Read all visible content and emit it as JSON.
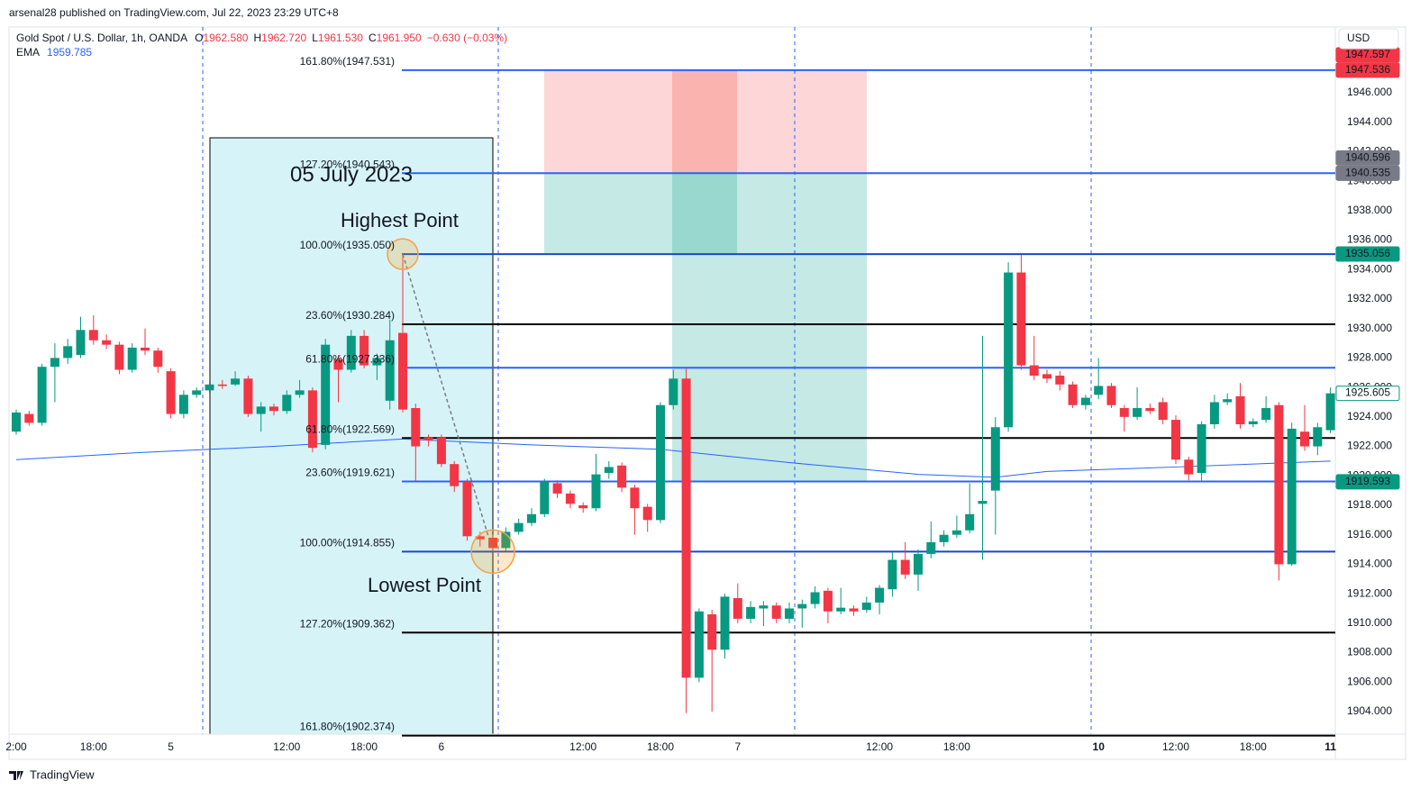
{
  "header": {
    "author_line": "arsenal28 published on TradingView.com, Jul 22, 2023 23:29 UTC+8",
    "symbol": "Gold Spot / U.S. Dollar, 1h, OANDA",
    "ohlc": [
      {
        "label": "O",
        "value": "1962.580"
      },
      {
        "label": "H",
        "value": "1962.720"
      },
      {
        "label": "L",
        "value": "1961.530"
      },
      {
        "label": "C",
        "value": "1961.950"
      }
    ],
    "change": "−0.630 (−0.03%)",
    "ema_label": "EMA",
    "ema_value": "1959.785",
    "currency": "USD"
  },
  "footer": {
    "brand": "TradingView"
  },
  "chart_data": {
    "type": "candlestick",
    "ylim": [
      1902.47,
      1950.46
    ],
    "yticks": [
      {
        "value": 1904,
        "label": "1904.000"
      },
      {
        "value": 1906,
        "label": "1906.000"
      },
      {
        "value": 1908,
        "label": "1908.000"
      },
      {
        "value": 1910,
        "label": "1910.000"
      },
      {
        "value": 1912,
        "label": "1912.000"
      },
      {
        "value": 1914,
        "label": "1914.000"
      },
      {
        "value": 1916,
        "label": "1916.000"
      },
      {
        "value": 1918,
        "label": "1918.000"
      },
      {
        "value": 1920,
        "label": "1920.000"
      },
      {
        "value": 1922,
        "label": "1922.000"
      },
      {
        "value": 1924,
        "label": "1924.000"
      },
      {
        "value": 1926,
        "label": "1926.000"
      },
      {
        "value": 1928,
        "label": "1928.000"
      },
      {
        "value": 1930,
        "label": "1930.000"
      },
      {
        "value": 1932,
        "label": "1932.000"
      },
      {
        "value": 1934,
        "label": "1934.000"
      },
      {
        "value": 1936,
        "label": "1936.000"
      },
      {
        "value": 1938,
        "label": "1938.000"
      },
      {
        "value": 1940,
        "label": "1940.000"
      },
      {
        "value": 1942,
        "label": "1942.000"
      },
      {
        "value": 1944,
        "label": "1944.000"
      },
      {
        "value": 1946,
        "label": "1946.000"
      }
    ],
    "xticks": [
      {
        "value": 0,
        "label": "2:00"
      },
      {
        "value": 6,
        "label": "18:00"
      },
      {
        "value": 12,
        "label": "5"
      },
      {
        "value": 21,
        "label": "12:00"
      },
      {
        "value": 27,
        "label": "18:00"
      },
      {
        "value": 33,
        "label": "6"
      },
      {
        "value": 44,
        "label": "12:00"
      },
      {
        "value": 50,
        "label": "18:00"
      },
      {
        "value": 56,
        "label": "7"
      },
      {
        "value": 67,
        "label": "12:00"
      },
      {
        "value": 73,
        "label": "18:00"
      },
      {
        "value": 84,
        "label": "10"
      },
      {
        "value": 90,
        "label": "12:00"
      },
      {
        "value": 96,
        "label": "18:00"
      },
      {
        "value": 102,
        "label": "11"
      }
    ],
    "up_color": "#089981",
    "down_color": "#f23645",
    "ohlc": {
      "open": [
        1923.0,
        1924.2,
        1923.6,
        1927.4,
        1928.0,
        1928.2,
        1929.9,
        1929.2,
        1928.9,
        1927.2,
        1928.7,
        1928.5,
        1927.1,
        1924.2,
        1925.5,
        1925.8,
        1926.2,
        1926.2,
        1926.6,
        1924.2,
        1924.7,
        1924.4,
        1925.5,
        1925.8,
        1922.1,
        1927.9,
        1927.2,
        1929.5,
        1927.5,
        1925.1,
        1929.7,
        1924.6,
        1922.6,
        1922.6,
        1920.8,
        1919.6,
        1915.9,
        1915.8,
        1915.1,
        1916.2,
        1916.8,
        1917.4,
        1919.5,
        1918.8,
        1918.0,
        1917.8,
        1920.2,
        1920.7,
        1919.2,
        1917.9,
        1917.0,
        1924.8,
        1926.6,
        1906.3,
        1910.6,
        1908.2,
        1911.7,
        1910.3,
        1911.0,
        1911.2,
        1910.3,
        1911.0,
        1911.3,
        1912.2,
        1910.8,
        1911.0,
        1910.9,
        1911.4,
        1912.3,
        1914.3,
        1913.3,
        1914.7,
        1915.5,
        1916.0,
        1916.3,
        1918.1,
        1919.0,
        1923.3,
        1933.8,
        1927.5,
        1926.9,
        1926.8,
        1926.2,
        1924.8,
        1925.5,
        1926.1,
        1924.6,
        1924.0,
        1924.6,
        1925.0,
        1923.8,
        1921.1,
        1920.2,
        1923.5,
        1925.0,
        1925.4,
        1923.5,
        1923.8,
        1924.8,
        1914.0,
        1923.0,
        1922.0,
        1923.1
      ],
      "high": [
        1924.5,
        1924.4,
        1927.6,
        1929.0,
        1929.3,
        1930.8,
        1930.9,
        1929.6,
        1929.1,
        1929.0,
        1930.0,
        1928.7,
        1927.3,
        1925.8,
        1926.0,
        1926.4,
        1926.5,
        1927.1,
        1926.8,
        1925.0,
        1924.9,
        1925.8,
        1926.5,
        1926.0,
        1929.3,
        1928.2,
        1929.9,
        1929.9,
        1928.3,
        1930.6,
        1935.05,
        1924.9,
        1922.8,
        1922.8,
        1921.0,
        1919.8,
        1916.2,
        1916.0,
        1916.5,
        1917.1,
        1917.8,
        1919.8,
        1919.7,
        1919.0,
        1918.2,
        1921.5,
        1921.0,
        1920.9,
        1919.4,
        1918.1,
        1925.0,
        1927.2,
        1927.3,
        1911.0,
        1910.9,
        1912.0,
        1912.7,
        1911.5,
        1911.5,
        1911.4,
        1911.4,
        1911.6,
        1912.5,
        1912.4,
        1912.4,
        1911.2,
        1911.8,
        1912.6,
        1914.8,
        1915.5,
        1915.0,
        1916.9,
        1916.3,
        1917.3,
        1919.5,
        1929.5,
        1924.0,
        1934.5,
        1935.0,
        1929.5,
        1927.2,
        1927.1,
        1926.4,
        1925.5,
        1928.0,
        1926.3,
        1924.8,
        1926.0,
        1924.9,
        1925.3,
        1924.1,
        1921.3,
        1923.7,
        1925.5,
        1925.6,
        1926.3,
        1923.9,
        1925.4,
        1925.0,
        1923.6,
        1924.8,
        1923.6,
        1926.0
      ],
      "low": [
        1922.8,
        1923.4,
        1923.4,
        1925.0,
        1927.6,
        1928.0,
        1928.9,
        1928.6,
        1926.9,
        1927.0,
        1928.2,
        1927.0,
        1923.9,
        1923.9,
        1925.3,
        1925.6,
        1925.9,
        1926.1,
        1924.0,
        1923.0,
        1924.1,
        1924.2,
        1925.3,
        1921.6,
        1921.8,
        1925.0,
        1927.0,
        1927.3,
        1926.5,
        1924.5,
        1924.3,
        1919.6,
        1922.0,
        1920.6,
        1918.9,
        1915.6,
        1915.2,
        1914.86,
        1914.9,
        1916.0,
        1916.6,
        1917.2,
        1918.5,
        1917.8,
        1917.5,
        1917.6,
        1919.8,
        1918.9,
        1916.0,
        1916.2,
        1916.8,
        1924.5,
        1903.9,
        1906.0,
        1904.0,
        1907.6,
        1910.0,
        1910.0,
        1909.8,
        1910.0,
        1910.0,
        1909.7,
        1911.0,
        1910.0,
        1910.6,
        1910.5,
        1910.7,
        1910.6,
        1911.8,
        1913.0,
        1912.2,
        1914.4,
        1915.2,
        1915.8,
        1916.1,
        1914.3,
        1916.0,
        1923.0,
        1927.2,
        1926.5,
        1926.3,
        1925.8,
        1924.6,
        1924.5,
        1925.2,
        1924.6,
        1923.0,
        1923.8,
        1924.2,
        1923.5,
        1920.8,
        1919.7,
        1919.6,
        1923.2,
        1924.8,
        1923.2,
        1923.3,
        1923.6,
        1912.9,
        1913.9,
        1921.7,
        1921.4,
        1922.9
      ],
      "close": [
        1924.3,
        1923.6,
        1927.4,
        1928.0,
        1928.8,
        1929.9,
        1929.2,
        1928.9,
        1927.2,
        1928.7,
        1928.5,
        1927.4,
        1924.2,
        1925.5,
        1925.8,
        1926.2,
        1926.1,
        1926.6,
        1924.2,
        1924.7,
        1924.4,
        1925.5,
        1925.8,
        1921.9,
        1928.9,
        1927.2,
        1929.5,
        1927.5,
        1928.0,
        1929.2,
        1924.5,
        1922.0,
        1922.4,
        1920.8,
        1919.3,
        1915.9,
        1915.7,
        1915.1,
        1916.2,
        1916.8,
        1917.4,
        1919.6,
        1918.8,
        1918.1,
        1917.8,
        1920.1,
        1920.6,
        1919.2,
        1917.8,
        1917.0,
        1924.8,
        1926.6,
        1906.3,
        1910.8,
        1908.2,
        1911.8,
        1910.3,
        1911.1,
        1911.2,
        1910.3,
        1911.0,
        1911.3,
        1912.1,
        1910.8,
        1911.05,
        1910.8,
        1911.4,
        1912.4,
        1914.3,
        1913.3,
        1914.7,
        1915.5,
        1916.0,
        1916.3,
        1917.4,
        1918.3,
        1923.3,
        1933.8,
        1927.5,
        1926.8,
        1926.6,
        1926.2,
        1924.8,
        1925.3,
        1926.1,
        1924.8,
        1924.0,
        1924.6,
        1924.4,
        1923.8,
        1921.1,
        1920.1,
        1923.5,
        1925.0,
        1925.2,
        1923.5,
        1923.7,
        1924.6,
        1914.0,
        1923.2,
        1922.0,
        1923.3,
        1925.6
      ]
    },
    "ema": {
      "color": "#2962ff",
      "x": [
        0,
        10,
        20,
        30,
        40,
        50,
        60,
        70,
        76,
        80,
        90,
        102
      ],
      "values": [
        1921.1,
        1921.6,
        1922.0,
        1922.5,
        1922.1,
        1921.8,
        1920.9,
        1920.1,
        1919.9,
        1920.3,
        1920.6,
        1921.0
      ]
    },
    "fib_levels": [
      {
        "label": "161.80%(1947.531)",
        "value": 1947.531,
        "color": "#2962ff"
      },
      {
        "label": "127.20%(1940.543)",
        "value": 1940.543,
        "color": "#2962ff"
      },
      {
        "label": "100.00%(1935.050)",
        "value": 1935.05,
        "color": "#1848cc"
      },
      {
        "label": "23.60%(1930.284)",
        "value": 1930.284,
        "color": "#000000"
      },
      {
        "label": "61.80%(1927.336)",
        "value": 1927.336,
        "color": "#2962ff"
      },
      {
        "label": "61.80%(1922.569)",
        "value": 1922.569,
        "color": "#000000"
      },
      {
        "label": "23.60%(1919.621)",
        "value": 1919.621,
        "color": "#2962ff"
      },
      {
        "label": "100.00%(1914.855)",
        "value": 1914.855,
        "color": "#1848cc"
      },
      {
        "label": "127.20%(1909.362)",
        "value": 1909.362,
        "color": "#000000"
      },
      {
        "label": "161.80%(1902.374)",
        "value": 1902.374,
        "color": "#000000"
      }
    ],
    "price_badges": [
      {
        "value": 1947.597,
        "label": "1947.597",
        "color": "#f23645"
      },
      {
        "value": 1947.536,
        "label": "1947.536",
        "color": "#f23645"
      },
      {
        "value": 1940.596,
        "label": "1940.596",
        "color": "#787b86"
      },
      {
        "value": 1940.535,
        "label": "1940.535",
        "color": "#787b86"
      },
      {
        "value": 1935.056,
        "label": "1935.056",
        "color": "#089981"
      },
      {
        "value": 1925.605,
        "label": "1925.605",
        "color": "#089981",
        "outline": true
      },
      {
        "value": 1919.593,
        "label": "1919.593",
        "color": "#089981"
      }
    ],
    "annotations": [
      "05 July 2023",
      "Highest Point",
      "Lowest Point"
    ]
  }
}
